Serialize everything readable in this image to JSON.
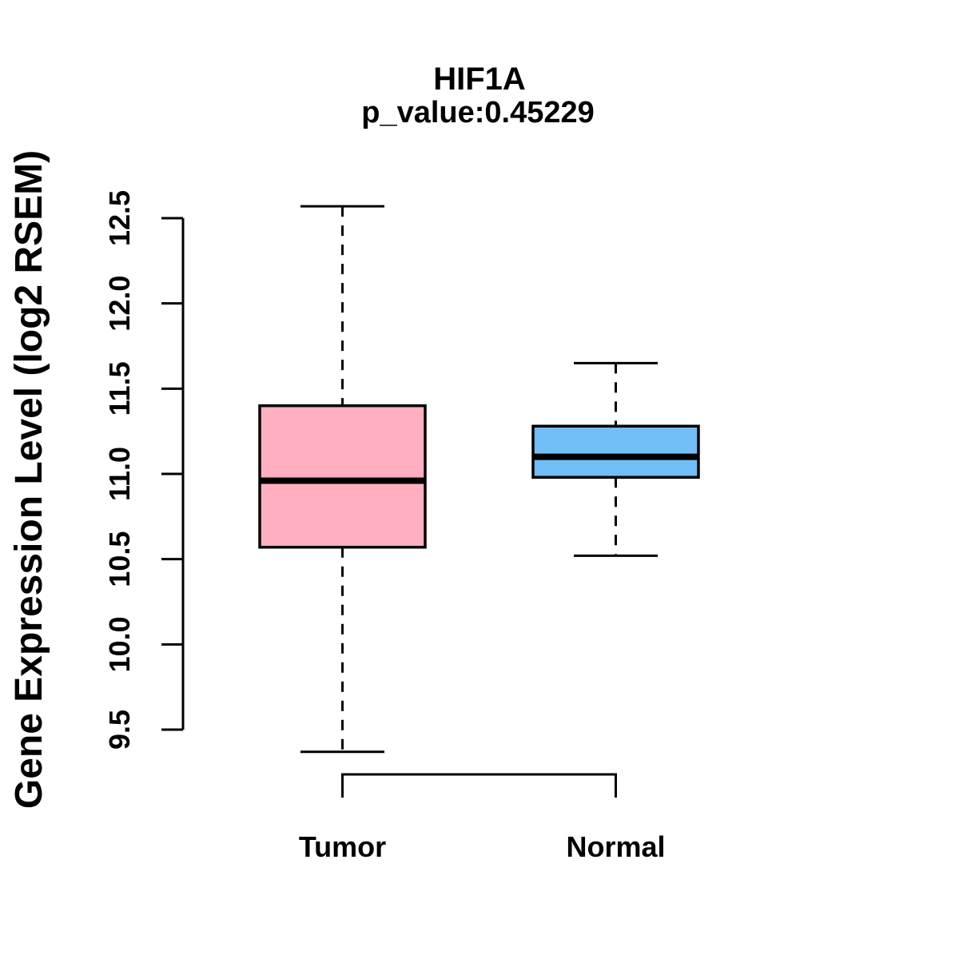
{
  "page": {
    "background_color": "#ffffff",
    "foreground_color": "#000000"
  },
  "chart_data": {
    "type": "boxplot",
    "title": "HIF1A",
    "subtitle": "p_value:0.45229",
    "ylabel": "Gene Expression Level (log2 RSEM)",
    "xlabel": "",
    "categories": [
      "Tumor",
      "Normal"
    ],
    "yticks": [
      9.5,
      10.0,
      10.5,
      11.0,
      11.5,
      12.0,
      12.5
    ],
    "ylim": [
      9.3,
      12.62
    ],
    "grid": false,
    "legend": null,
    "stroke_color": "#000000",
    "series": [
      {
        "name": "Tumor",
        "whisker_low": 9.37,
        "q1": 10.57,
        "median": 10.96,
        "q3": 11.4,
        "whisker_high": 12.57,
        "fill": "#ffafc0"
      },
      {
        "name": "Normal",
        "whisker_low": 10.52,
        "q1": 10.98,
        "median": 11.1,
        "q3": 11.28,
        "whisker_high": 11.65,
        "fill": "#72bef6"
      }
    ]
  }
}
